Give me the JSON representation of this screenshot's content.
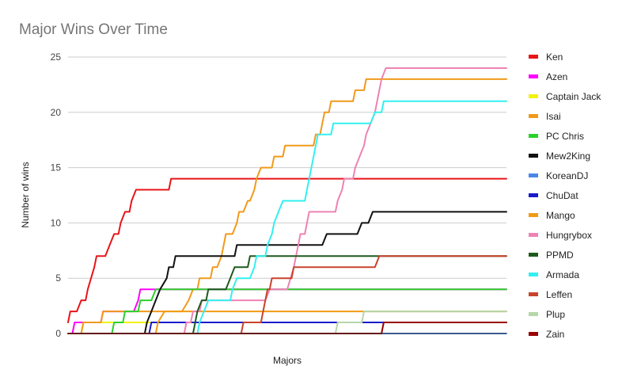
{
  "chart_data": {
    "type": "line",
    "title": "Major Wins Over Time",
    "xlabel": "Majors",
    "ylabel": "Number of wins",
    "ylim": [
      0,
      25
    ],
    "yticks": [
      "0",
      "5",
      "10",
      "15",
      "20",
      "25"
    ],
    "grid": true,
    "legend_position": "right",
    "x_count": 200,
    "series": [
      {
        "name": "Ken",
        "color": "#e8141a",
        "points": [
          [
            0,
            1
          ],
          [
            1,
            2
          ],
          [
            4,
            2
          ],
          [
            6,
            3
          ],
          [
            8,
            3
          ],
          [
            9,
            4
          ],
          [
            12,
            6
          ],
          [
            13,
            7
          ],
          [
            17,
            7
          ],
          [
            19,
            8
          ],
          [
            21,
            9
          ],
          [
            23,
            9
          ],
          [
            24,
            10
          ],
          [
            26,
            11
          ],
          [
            28,
            11
          ],
          [
            29,
            12
          ],
          [
            31,
            13
          ],
          [
            46,
            13
          ],
          [
            47,
            14
          ],
          [
            200,
            14
          ]
        ]
      },
      {
        "name": "Azen",
        "color": "#ff00ff",
        "points": [
          [
            0,
            0
          ],
          [
            2,
            0
          ],
          [
            3,
            1
          ],
          [
            15,
            1
          ],
          [
            16,
            2
          ],
          [
            30,
            2
          ],
          [
            32,
            3
          ],
          [
            33,
            4
          ],
          [
            48,
            4
          ],
          [
            49,
            4
          ],
          [
            200,
            4
          ]
        ]
      },
      {
        "name": "Captain Jack",
        "color": "#f2f20a",
        "points": [
          [
            0,
            0
          ],
          [
            6,
            0
          ],
          [
            7,
            1
          ],
          [
            40,
            1
          ],
          [
            41,
            1
          ],
          [
            200,
            1
          ]
        ]
      },
      {
        "name": "Isai",
        "color": "#f09a1a",
        "points": [
          [
            0,
            0
          ],
          [
            6,
            0
          ],
          [
            7,
            1
          ],
          [
            15,
            1
          ],
          [
            16,
            2
          ],
          [
            52,
            2
          ],
          [
            55,
            3
          ],
          [
            57,
            4
          ],
          [
            59,
            4
          ],
          [
            60,
            5
          ],
          [
            65,
            5
          ],
          [
            66,
            6
          ],
          [
            68,
            6
          ],
          [
            70,
            7
          ],
          [
            71,
            8
          ],
          [
            72,
            9
          ],
          [
            75,
            9
          ],
          [
            77,
            10
          ],
          [
            78,
            11
          ],
          [
            80,
            11
          ],
          [
            82,
            12
          ],
          [
            83,
            12
          ],
          [
            85,
            13
          ],
          [
            86,
            14
          ],
          [
            88,
            15
          ],
          [
            93,
            15
          ],
          [
            94,
            16
          ],
          [
            98,
            16
          ],
          [
            99,
            17
          ],
          [
            112,
            17
          ],
          [
            113,
            18
          ],
          [
            115,
            18
          ],
          [
            116,
            19
          ],
          [
            117,
            20
          ],
          [
            119,
            20
          ],
          [
            120,
            21
          ],
          [
            130,
            21
          ],
          [
            131,
            22
          ],
          [
            135,
            22
          ],
          [
            136,
            23
          ],
          [
            200,
            23
          ]
        ]
      },
      {
        "name": "PC Chris",
        "color": "#2bd12b",
        "points": [
          [
            0,
            0
          ],
          [
            20,
            0
          ],
          [
            21,
            1
          ],
          [
            25,
            1
          ],
          [
            26,
            2
          ],
          [
            32,
            2
          ],
          [
            33,
            3
          ],
          [
            38,
            3
          ],
          [
            40,
            4
          ],
          [
            200,
            4
          ]
        ]
      },
      {
        "name": "Mew2King",
        "color": "#111111",
        "points": [
          [
            0,
            0
          ],
          [
            35,
            0
          ],
          [
            36,
            1
          ],
          [
            38,
            2
          ],
          [
            40,
            3
          ],
          [
            42,
            4
          ],
          [
            45,
            5
          ],
          [
            46,
            6
          ],
          [
            48,
            6
          ],
          [
            49,
            7
          ],
          [
            70,
            7
          ],
          [
            72,
            7
          ],
          [
            76,
            7
          ],
          [
            77,
            8
          ],
          [
            116,
            8
          ],
          [
            118,
            9
          ],
          [
            132,
            9
          ],
          [
            134,
            10
          ],
          [
            137,
            10
          ],
          [
            139,
            11
          ],
          [
            200,
            11
          ]
        ]
      },
      {
        "name": "KoreanDJ",
        "color": "#4a86e8",
        "points": [
          [
            0,
            0
          ],
          [
            200,
            0
          ]
        ]
      },
      {
        "name": "ChuDat",
        "color": "#1a1acc",
        "points": [
          [
            0,
            0
          ],
          [
            37,
            0
          ],
          [
            38,
            1
          ],
          [
            200,
            1
          ]
        ]
      },
      {
        "name": "Mango",
        "color": "#f29b12",
        "points": [
          [
            0,
            0
          ],
          [
            40,
            0
          ],
          [
            41,
            1
          ],
          [
            44,
            2
          ],
          [
            200,
            2
          ]
        ]
      },
      {
        "name": "Hungrybox",
        "color": "#ee82b4",
        "points": [
          [
            0,
            0
          ],
          [
            53,
            0
          ],
          [
            54,
            1
          ],
          [
            56,
            1
          ],
          [
            57,
            2
          ],
          [
            60,
            2
          ],
          [
            61,
            3
          ],
          [
            90,
            3
          ],
          [
            92,
            4
          ],
          [
            100,
            4
          ],
          [
            103,
            6
          ],
          [
            105,
            8
          ],
          [
            106,
            9
          ],
          [
            108,
            9
          ],
          [
            109,
            10
          ],
          [
            110,
            11
          ],
          [
            122,
            11
          ],
          [
            123,
            12
          ],
          [
            125,
            13
          ],
          [
            126,
            14
          ],
          [
            130,
            14
          ],
          [
            131,
            15
          ],
          [
            133,
            16
          ],
          [
            135,
            17
          ],
          [
            136,
            18
          ],
          [
            138,
            19
          ],
          [
            140,
            20
          ],
          [
            141,
            21
          ],
          [
            142,
            22
          ],
          [
            143,
            23
          ],
          [
            145,
            24
          ],
          [
            200,
            24
          ]
        ]
      },
      {
        "name": "PPMD",
        "color": "#1e5a1e",
        "points": [
          [
            0,
            0
          ],
          [
            57,
            0
          ],
          [
            58,
            1
          ],
          [
            59,
            2
          ],
          [
            61,
            3
          ],
          [
            63,
            3
          ],
          [
            64,
            4
          ],
          [
            72,
            4
          ],
          [
            74,
            5
          ],
          [
            76,
            6
          ],
          [
            82,
            6
          ],
          [
            83,
            7
          ],
          [
            200,
            7
          ]
        ]
      },
      {
        "name": "Armada",
        "color": "#33f0f0",
        "points": [
          [
            0,
            0
          ],
          [
            59,
            0
          ],
          [
            60,
            1
          ],
          [
            62,
            2
          ],
          [
            64,
            3
          ],
          [
            74,
            3
          ],
          [
            75,
            4
          ],
          [
            77,
            5
          ],
          [
            83,
            5
          ],
          [
            85,
            6
          ],
          [
            86,
            7
          ],
          [
            90,
            7
          ],
          [
            91,
            8
          ],
          [
            93,
            9
          ],
          [
            94,
            10
          ],
          [
            96,
            11
          ],
          [
            98,
            12
          ],
          [
            108,
            12
          ],
          [
            109,
            13
          ],
          [
            110,
            14
          ],
          [
            111,
            15
          ],
          [
            113,
            17
          ],
          [
            114,
            18
          ],
          [
            120,
            18
          ],
          [
            121,
            19
          ],
          [
            138,
            19
          ],
          [
            140,
            20
          ],
          [
            143,
            20
          ],
          [
            144,
            21
          ],
          [
            200,
            21
          ]
        ]
      },
      {
        "name": "Leffen",
        "color": "#c8432b",
        "points": [
          [
            0,
            0
          ],
          [
            79,
            0
          ],
          [
            80,
            1
          ],
          [
            88,
            1
          ],
          [
            89,
            2
          ],
          [
            90,
            3
          ],
          [
            91,
            4
          ],
          [
            92,
            4
          ],
          [
            93,
            5
          ],
          [
            102,
            5
          ],
          [
            103,
            6
          ],
          [
            140,
            6
          ],
          [
            142,
            7
          ],
          [
            200,
            7
          ]
        ]
      },
      {
        "name": "Plup",
        "color": "#b6d7a8",
        "points": [
          [
            0,
            0
          ],
          [
            122,
            0
          ],
          [
            123,
            1
          ],
          [
            134,
            1
          ],
          [
            135,
            2
          ],
          [
            200,
            2
          ]
        ]
      },
      {
        "name": "Zain",
        "color": "#990000",
        "points": [
          [
            0,
            0
          ],
          [
            143,
            0
          ],
          [
            144,
            1
          ],
          [
            200,
            1
          ]
        ]
      }
    ]
  }
}
